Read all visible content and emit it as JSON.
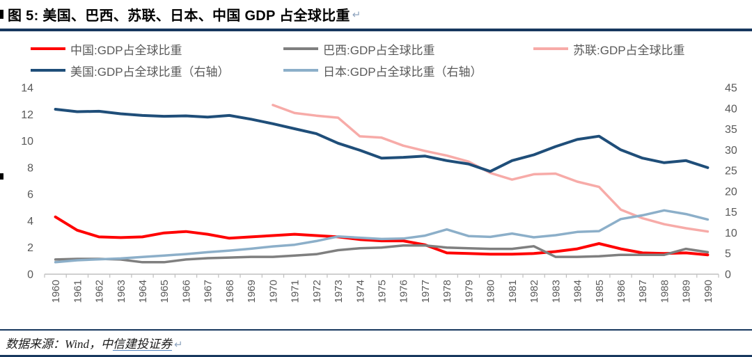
{
  "header": {
    "title": "图 5: 美国、巴西、苏联、日本、中国 GDP 占全球比重",
    "return_mark": "↵"
  },
  "colors": {
    "rule": "#17375E",
    "axis_text": "#595959",
    "axis_line": "#BFBFBF"
  },
  "legend": {
    "items": [
      {
        "key": "china",
        "label": "中国:GDP占全球比重",
        "color": "#FF0000"
      },
      {
        "key": "brazil",
        "label": "巴西:GDP占全球比重",
        "color": "#7F7F7F"
      },
      {
        "key": "ussr",
        "label": "苏联:GDP占全球比重",
        "color": "#F7ABA8"
      },
      {
        "key": "us",
        "label": "美国:GDP占全球比重（右轴）",
        "color": "#1F4E79"
      },
      {
        "key": "japan",
        "label": "日本:GDP占全球比重（右轴）",
        "color": "#8CAFC9"
      }
    ]
  },
  "chart_data": {
    "type": "line",
    "grid": false,
    "legend_position": "top",
    "x": [
      "1960",
      "1961",
      "1962",
      "1963",
      "1964",
      "1965",
      "1966",
      "1967",
      "1968",
      "1969",
      "1970",
      "1971",
      "1972",
      "1973",
      "1974",
      "1975",
      "1976",
      "1977",
      "1978",
      "1979",
      "1980",
      "1981",
      "1982",
      "1983",
      "1984",
      "1985",
      "1986",
      "1987",
      "1988",
      "1989",
      "1990"
    ],
    "left_axis": {
      "range": [
        0,
        14
      ],
      "ticks": [
        0,
        2,
        4,
        6,
        8,
        10,
        12,
        14
      ]
    },
    "right_axis": {
      "range": [
        0,
        45
      ],
      "ticks": [
        0,
        5,
        10,
        15,
        20,
        25,
        30,
        35,
        40,
        45
      ]
    },
    "series": [
      {
        "key": "china",
        "name": "中国:GDP占全球比重",
        "axis": "left",
        "color": "#FF0000",
        "values": [
          4.3,
          3.3,
          2.8,
          2.75,
          2.8,
          3.1,
          3.2,
          3.0,
          2.7,
          2.8,
          2.9,
          3.0,
          2.9,
          2.8,
          2.6,
          2.5,
          2.5,
          2.2,
          1.6,
          1.55,
          1.5,
          1.5,
          1.55,
          1.7,
          1.9,
          2.3,
          1.9,
          1.6,
          1.55,
          1.6,
          1.45
        ]
      },
      {
        "key": "brazil",
        "name": "巴西:GDP占全球比重",
        "axis": "left",
        "color": "#7F7F7F",
        "values": [
          1.1,
          1.15,
          1.15,
          1.1,
          0.9,
          0.9,
          1.1,
          1.2,
          1.25,
          1.3,
          1.3,
          1.4,
          1.5,
          1.8,
          1.95,
          2.0,
          2.15,
          2.15,
          2.0,
          1.95,
          1.9,
          1.9,
          2.1,
          1.3,
          1.3,
          1.35,
          1.45,
          1.45,
          1.45,
          1.9,
          1.65
        ]
      },
      {
        "key": "ussr",
        "name": "苏联:GDP占全球比重",
        "axis": "left",
        "color": "#F7ABA8",
        "values": [
          null,
          null,
          null,
          null,
          null,
          null,
          null,
          null,
          null,
          null,
          12.7,
          12.1,
          11.9,
          11.75,
          10.35,
          10.25,
          9.65,
          9.25,
          8.9,
          8.45,
          7.6,
          7.1,
          7.5,
          7.55,
          6.95,
          6.55,
          4.85,
          4.2,
          3.75,
          3.45,
          3.2
        ]
      },
      {
        "key": "us",
        "name": "美国:GDP占全球比重（右轴）",
        "axis": "right",
        "color": "#1F4E79",
        "values": [
          39.8,
          39.2,
          39.3,
          38.7,
          38.3,
          38.1,
          38.2,
          37.9,
          38.3,
          37.4,
          36.3,
          35.1,
          33.9,
          31.6,
          29.9,
          28.0,
          28.2,
          28.5,
          27.4,
          26.6,
          24.8,
          27.4,
          28.8,
          30.8,
          32.5,
          33.3,
          30.0,
          28.0,
          26.9,
          27.4,
          25.7
        ]
      },
      {
        "key": "japan",
        "name": "日本:GDP占全球比重（右轴）",
        "axis": "right",
        "color": "#8CAFC9",
        "values": [
          2.9,
          3.35,
          3.6,
          3.8,
          4.15,
          4.5,
          4.85,
          5.3,
          5.7,
          6.15,
          6.7,
          7.1,
          8.0,
          9.1,
          8.8,
          8.5,
          8.6,
          9.3,
          10.8,
          9.2,
          9.0,
          9.8,
          8.9,
          9.4,
          10.2,
          10.4,
          13.3,
          14.2,
          15.4,
          14.5,
          13.2
        ]
      }
    ]
  },
  "footer": {
    "source_prefix": "数据来源：Wind，中",
    "source_link": "信建投证券",
    "return_mark": "↵"
  }
}
